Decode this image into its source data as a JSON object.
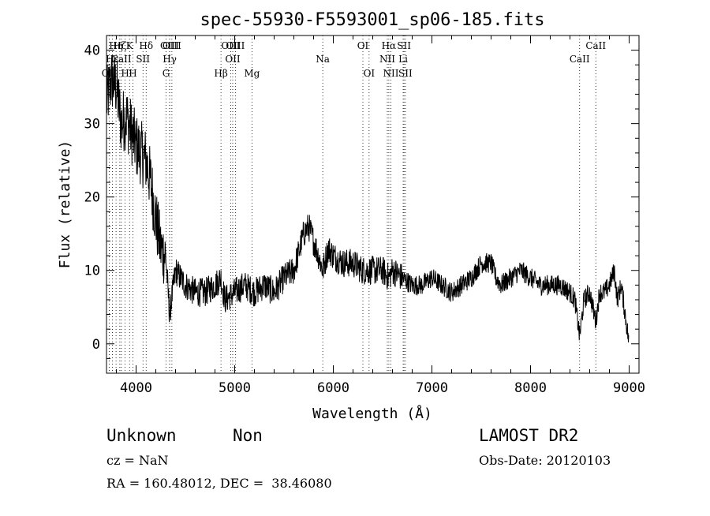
{
  "chart_data": {
    "type": "line",
    "title": "spec-55930-F5593001_sp06-185.fits",
    "xlabel": "Wavelength (Å)",
    "ylabel": "Flux (relative)",
    "xlim": [
      3700,
      9100
    ],
    "ylim": [
      -4,
      42
    ],
    "xticks": [
      4000,
      5000,
      6000,
      7000,
      8000,
      9000
    ],
    "yticks": [
      0,
      10,
      20,
      30,
      40
    ],
    "grid": false,
    "series": [
      {
        "color": "#000000",
        "x": [
          3700,
          3750,
          3800,
          3850,
          3900,
          3950,
          4000,
          4050,
          4100,
          4150,
          4200,
          4250,
          4300,
          4340,
          4400,
          4450,
          4500,
          4600,
          4700,
          4800,
          4860,
          4900,
          5000,
          5100,
          5200,
          5300,
          5400,
          5500,
          5600,
          5700,
          5750,
          5800,
          5850,
          5893,
          5950,
          6000,
          6100,
          6200,
          6300,
          6400,
          6500,
          6563,
          6600,
          6700,
          6800,
          6900,
          7000,
          7100,
          7200,
          7300,
          7400,
          7500,
          7600,
          7650,
          7700,
          7800,
          7900,
          8000,
          8100,
          8200,
          8300,
          8400,
          8450,
          8498,
          8542,
          8600,
          8662,
          8700,
          8750,
          8800,
          8850,
          8880,
          8920,
          9000
        ],
        "y": [
          33,
          36,
          35,
          30,
          31,
          29,
          27,
          26,
          25,
          22,
          17,
          13,
          12,
          4,
          10,
          9,
          8,
          7,
          7,
          8,
          9,
          6,
          7,
          8,
          7,
          8,
          7,
          9,
          10,
          15,
          16,
          14,
          12,
          10,
          13,
          12,
          11,
          11,
          10,
          10,
          10,
          9,
          10,
          9,
          8,
          8,
          9,
          8,
          7,
          8,
          9,
          11,
          11,
          9,
          8,
          9,
          10,
          9,
          8,
          8,
          8,
          7,
          6,
          1,
          6,
          7,
          3,
          7,
          7,
          8,
          10,
          6,
          8,
          0
        ]
      }
    ],
    "lines": [
      {
        "label": "OII",
        "x": 3727,
        "row": 2
      },
      {
        "label": "Hε",
        "x": 3760,
        "row": 1
      },
      {
        "label": "Hη",
        "x": 3797,
        "row": 0
      },
      {
        "label": "Hζ",
        "x": 3835,
        "row": 0
      },
      {
        "label": "CaII",
        "x": 3850,
        "row": 1
      },
      {
        "label": "H",
        "x": 3889,
        "row": 2
      },
      {
        "label": "K",
        "x": 3934,
        "row": 0
      },
      {
        "label": "H",
        "x": 3968,
        "row": 2
      },
      {
        "label": "SII",
        "x": 4070,
        "row": 1
      },
      {
        "label": "Hδ",
        "x": 4102,
        "row": 0
      },
      {
        "label": "G",
        "x": 4304,
        "row": 2
      },
      {
        "label": "OIII",
        "x": 4340,
        "row": 0
      },
      {
        "label": "Hγ",
        "x": 4341,
        "row": 1
      },
      {
        "label": "OIII",
        "x": 4363,
        "row": 0
      },
      {
        "label": "Hβ",
        "x": 4861,
        "row": 2
      },
      {
        "label": "OIII",
        "x": 4959,
        "row": 0
      },
      {
        "label": "OII",
        "x": 4980,
        "row": 1
      },
      {
        "label": "OIII",
        "x": 5007,
        "row": 0
      },
      {
        "label": "Mg",
        "x": 5175,
        "row": 2
      },
      {
        "label": "Na",
        "x": 5893,
        "row": 1
      },
      {
        "label": "OI",
        "x": 6300,
        "row": 0
      },
      {
        "label": "OI",
        "x": 6363,
        "row": 2
      },
      {
        "label": "NII",
        "x": 6548,
        "row": 1
      },
      {
        "label": "Hα",
        "x": 6563,
        "row": 0
      },
      {
        "label": "NII",
        "x": 6584,
        "row": 2
      },
      {
        "label": "Li",
        "x": 6708,
        "row": 1
      },
      {
        "label": "SII",
        "x": 6717,
        "row": 0
      },
      {
        "label": "SII",
        "x": 6731,
        "row": 2
      },
      {
        "label": "CaII",
        "x": 8498,
        "row": 1
      },
      {
        "label": "CaII",
        "x": 8662,
        "row": 0
      }
    ]
  },
  "info": {
    "class": "Unknown",
    "subclass": "Non",
    "survey": "LAMOST DR2",
    "cz": "cz = NaN",
    "obs_date": "Obs-Date: 20120103",
    "radec": "RA = 160.48012, DEC =  38.46080"
  }
}
